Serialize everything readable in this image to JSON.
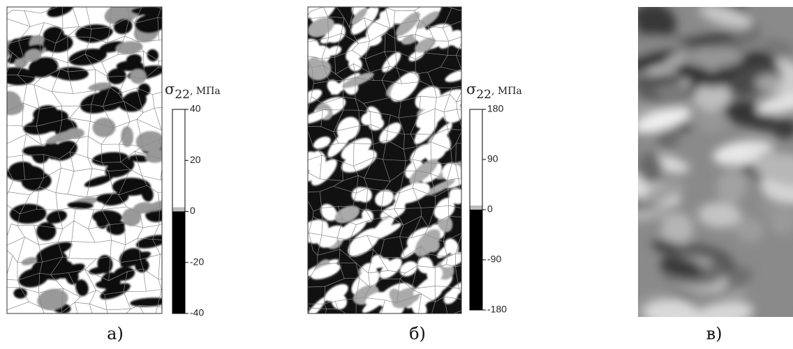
{
  "panels": [
    {
      "caption": "а)",
      "colorbar": {
        "symbol": "σ",
        "subscript": "22",
        "suffix": ", МПа",
        "range": [
          -40,
          40
        ],
        "ticks": [
          40,
          20,
          0,
          -20,
          -40
        ]
      }
    },
    {
      "caption": "б)",
      "colorbar": {
        "symbol": "σ",
        "subscript": "22",
        "suffix": ", МПа",
        "range": [
          -180,
          180
        ],
        "ticks": [
          180,
          90,
          0,
          -90,
          -180
        ]
      }
    },
    {
      "caption": "в)"
    }
  ]
}
